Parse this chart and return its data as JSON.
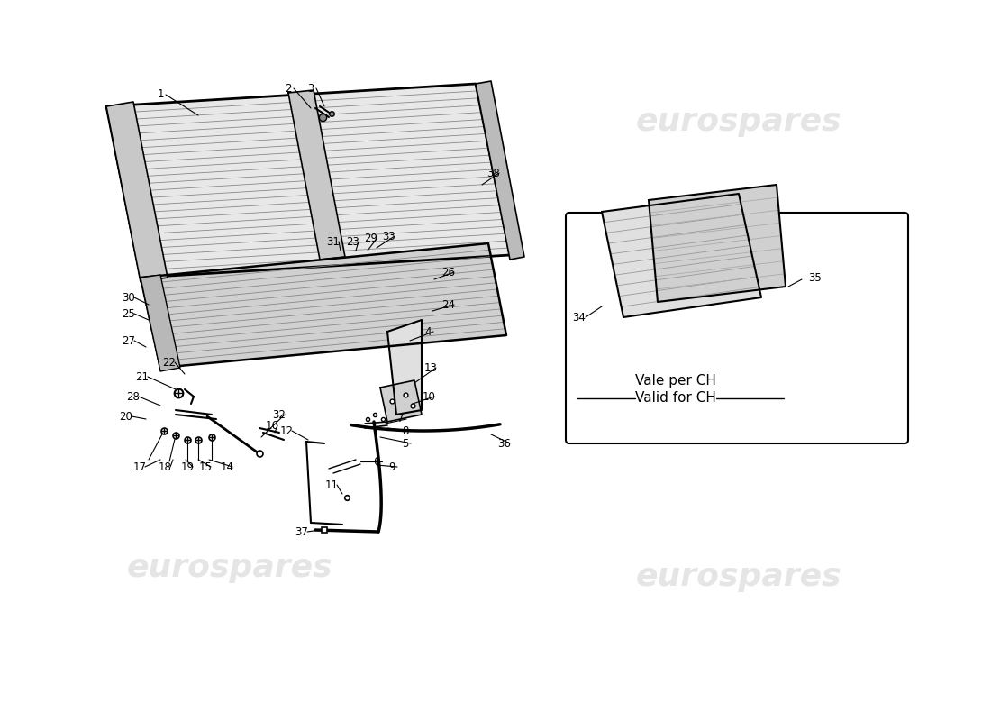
{
  "bg_color": "#ffffff",
  "watermark_color": "#cccccc",
  "watermark_text": "eurospares",
  "line_color": "#000000",
  "inset_label": "Vale per CH",
  "inset_sublabel": "Valid for CH"
}
